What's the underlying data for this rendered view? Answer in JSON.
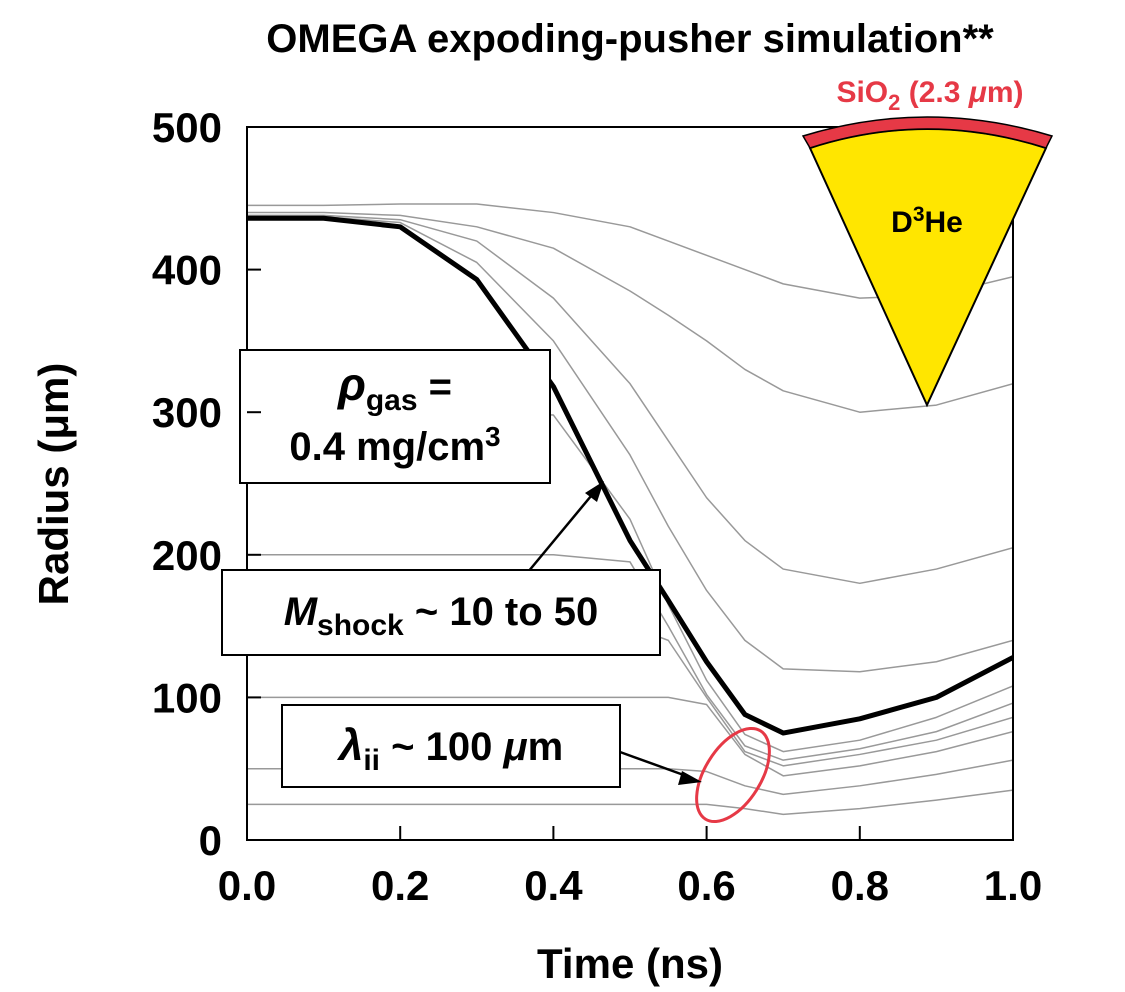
{
  "chart_data": {
    "type": "line",
    "title": "OMEGA expoding-pusher simulation**",
    "x_label": "Time (ns)",
    "y_label": "Radius (μm)",
    "xlim": [
      0,
      1
    ],
    "ylim": [
      0,
      500
    ],
    "xticks": [
      {
        "value": 0,
        "label": "0.0"
      },
      0.2,
      0.4,
      0.6,
      0.8,
      {
        "value": 1,
        "label": "1.0"
      }
    ],
    "yticks": [
      0,
      100,
      200,
      300,
      400,
      500
    ],
    "x": [
      0,
      0.1,
      0.2,
      0.3,
      0.4,
      0.5,
      0.55,
      0.6,
      0.65,
      0.7,
      0.8,
      0.9,
      1.0
    ],
    "series": [
      {
        "color": "#999999",
        "values": [
          25,
          25,
          25,
          25,
          25,
          25,
          25,
          25,
          22,
          18,
          22,
          28,
          35
        ]
      },
      {
        "color": "#999999",
        "values": [
          50,
          50,
          50,
          50,
          50,
          50,
          50,
          48,
          38,
          32,
          38,
          46,
          56
        ]
      },
      {
        "color": "#999999",
        "values": [
          100,
          100,
          100,
          100,
          100,
          100,
          100,
          95,
          60,
          45,
          52,
          62,
          76
        ]
      },
      {
        "color": "#999999",
        "values": [
          150,
          150,
          150,
          150,
          150,
          150,
          140,
          100,
          62,
          52,
          60,
          70,
          86
        ]
      },
      {
        "color": "#999999",
        "values": [
          200,
          200,
          200,
          200,
          200,
          195,
          150,
          102,
          66,
          56,
          64,
          76,
          96
        ]
      },
      {
        "color": "#999999",
        "values": [
          300,
          300,
          300,
          300,
          298,
          225,
          165,
          112,
          74,
          62,
          70,
          86,
          108
        ]
      },
      {
        "color": "#999999",
        "values": [
          437,
          437,
          433,
          405,
          350,
          270,
          220,
          175,
          140,
          120,
          118,
          125,
          140
        ]
      },
      {
        "color": "#999999",
        "values": [
          438,
          438,
          435,
          420,
          380,
          320,
          280,
          240,
          210,
          190,
          180,
          190,
          205
        ]
      },
      {
        "color": "#999999",
        "values": [
          440,
          440,
          438,
          430,
          415,
          385,
          368,
          350,
          330,
          315,
          300,
          305,
          320
        ]
      },
      {
        "color": "#999999",
        "values": [
          445,
          445,
          446,
          446,
          440,
          430,
          420,
          410,
          400,
          390,
          380,
          382,
          395
        ]
      },
      {
        "color": "#000000",
        "values": [
          436,
          436,
          430,
          393,
          318,
          210,
          168,
          125,
          88,
          75,
          85,
          100,
          128
        ]
      }
    ],
    "annotations": {
      "shell": [
        "SiO",
        "2",
        " (2.3 ",
        "μ",
        "m)"
      ],
      "gas": [
        "D",
        "3",
        "He"
      ],
      "density": [
        "ρ",
        "gas",
        " =",
        "0.4 mg/cm",
        "3"
      ],
      "mach": [
        "M",
        "shock",
        " ~ 10 to 50"
      ],
      "mfp": [
        "λ",
        "ii",
        " ~ 100 ",
        "μ",
        "m"
      ]
    }
  }
}
